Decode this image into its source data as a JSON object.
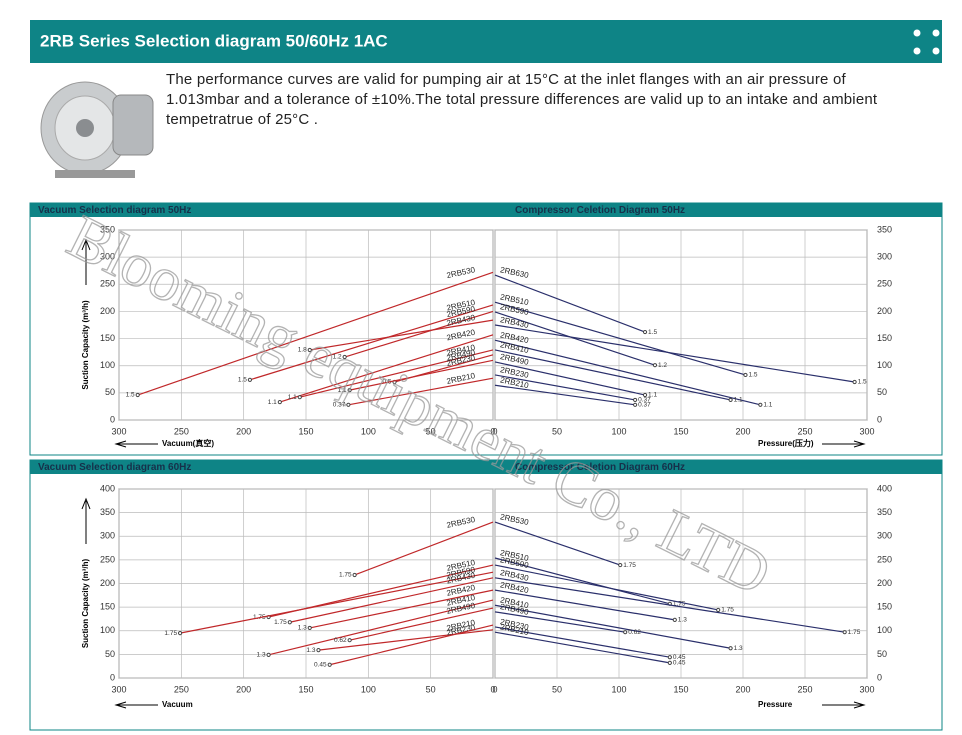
{
  "header": {
    "title": "2RB Series Selection diagram 50/60Hz 1AC"
  },
  "description": "The performance curves are valid for pumping air at 15°C at the inlet flanges with an air pressure of 1.013mbar and a tolerance of ±10%.The total pressure differences are valid up to an intake and ambient tempetratrue of 25°C .",
  "watermark": "Blooming equipment Co., LTD",
  "sections": [
    {
      "charts": [
        {
          "type": "line",
          "title": "Vacuum Selection diagram 50Hz",
          "y_label": "Suction Capacity (m³/h)",
          "x_label": "Vacuum(真空)",
          "color": "#c0282a",
          "xlim": [
            300,
            0
          ],
          "xticks": [
            300,
            250,
            200,
            150,
            100,
            50,
            0
          ],
          "ylim": [
            0,
            350
          ],
          "yticks": [
            0,
            50,
            100,
            150,
            200,
            250,
            300,
            350
          ],
          "y_axis": "left",
          "series": [
            {
              "name": "2RB530",
              "x": [
                285,
                0
              ],
              "values": [
                46,
                272
              ],
              "end_label": 1.5
            },
            {
              "name": "2RB510",
              "x": [
                195,
                0
              ],
              "values": [
                74,
                212
              ],
              "end_label": 1.5
            },
            {
              "name": "2RB590",
              "x": [
                119,
                0
              ],
              "values": [
                116,
                200
              ],
              "end_label": 1.2
            },
            {
              "name": "2RB430",
              "x": [
                147,
                0
              ],
              "values": [
                129,
                184
              ],
              "end_label": 1.8
            },
            {
              "name": "2RB420",
              "x": [
                171,
                0
              ],
              "values": [
                33,
                157
              ],
              "end_label": 1.1
            },
            {
              "name": "2RB410",
              "x": [
                155,
                0
              ],
              "values": [
                42,
                129
              ],
              "end_label": 1.1
            },
            {
              "name": "2RB490",
              "x": [
                79,
                0
              ],
              "values": [
                70,
                120
              ],
              "end_label": 0.5
            },
            {
              "name": "2RB230",
              "x": [
                115,
                0
              ],
              "values": [
                55,
                110
              ],
              "end_label": 1.1
            },
            {
              "name": "2RB210",
              "x": [
                116,
                0
              ],
              "values": [
                28,
                77
              ],
              "end_label": 0.37
            }
          ]
        },
        {
          "type": "line",
          "title": "Compressor Celetion Diagram 50Hz",
          "x_label": "Pressure(压力)",
          "color": "#2a2f6b",
          "xlim": [
            0,
            300
          ],
          "xticks": [
            0,
            50,
            100,
            150,
            200,
            250,
            300
          ],
          "ylim": [
            0,
            350
          ],
          "yticks": [
            0,
            50,
            100,
            150,
            200,
            250,
            300,
            350
          ],
          "y_axis": "right",
          "series": [
            {
              "name": "2RB630",
              "x": [
                0,
                121
              ],
              "values": [
                267,
                162
              ],
              "end_label": 1.5
            },
            {
              "name": "2RB510",
              "x": [
                0,
                202
              ],
              "values": [
                217,
                83
              ],
              "end_label": 1.5
            },
            {
              "name": "2RB590",
              "x": [
                0,
                129
              ],
              "values": [
                199,
                101
              ],
              "end_label": 1.2
            },
            {
              "name": "2RB430",
              "x": [
                0,
                290
              ],
              "values": [
                175,
                70
              ],
              "end_label": 1.5
            },
            {
              "name": "2RB420",
              "x": [
                0,
                214
              ],
              "values": [
                147,
                28
              ],
              "end_label": 1.1
            },
            {
              "name": "2RB410",
              "x": [
                0,
                190
              ],
              "values": [
                129,
                37
              ],
              "end_label": 1.1
            },
            {
              "name": "2RB490",
              "x": [
                0,
                121
              ],
              "values": [
                107,
                46
              ],
              "end_label": 1.1
            },
            {
              "name": "2RB230",
              "x": [
                0,
                113
              ],
              "values": [
                83,
                37
              ],
              "end_label": 0.37
            },
            {
              "name": "2RB210",
              "x": [
                0,
                113
              ],
              "values": [
                64,
                28
              ],
              "end_label": 0.37
            }
          ]
        }
      ]
    },
    {
      "charts": [
        {
          "type": "line",
          "title": "Vacuum Selection diagram 60Hz",
          "y_label": "Suction Capacity (m³/h)",
          "x_label": "Vacuum",
          "color": "#c0282a",
          "xlim": [
            300,
            0
          ],
          "xticks": [
            300,
            250,
            200,
            150,
            100,
            50,
            0
          ],
          "ylim": [
            0,
            400
          ],
          "yticks": [
            0,
            50,
            100,
            150,
            200,
            250,
            300,
            350,
            400
          ],
          "y_axis": "left",
          "series": [
            {
              "name": "2RB530",
              "x": [
                111,
                0
              ],
              "values": [
                218,
                330
              ],
              "end_label": 1.75
            },
            {
              "name": "2RB510",
              "x": [
                180,
                0
              ],
              "values": [
                129,
                239
              ],
              "end_label": 1.75
            },
            {
              "name": "2RB590",
              "x": [
                251,
                0
              ],
              "values": [
                95,
                224
              ],
              "end_label": 1.75
            },
            {
              "name": "2RB430",
              "x": [
                163,
                0
              ],
              "values": [
                118,
                212
              ],
              "end_label": 1.75
            },
            {
              "name": "2RB420",
              "x": [
                147,
                0
              ],
              "values": [
                106,
                186
              ],
              "end_label": 1.3
            },
            {
              "name": "2RB410",
              "x": [
                180,
                0
              ],
              "values": [
                49,
                165
              ],
              "end_label": 1.3
            },
            {
              "name": "2RB490",
              "x": [
                115,
                0
              ],
              "values": [
                80,
                148
              ],
              "end_label": 0.62
            },
            {
              "name": "2RB230",
              "x": [
                140,
                0
              ],
              "values": [
                59,
                102
              ],
              "end_label": 1.3
            },
            {
              "name": "2RB210",
              "x": [
                131,
                0
              ],
              "values": [
                28,
                112
              ],
              "end_label": 0.45
            }
          ]
        },
        {
          "type": "line",
          "title": "Compressor Celetion Diagram 60Hz",
          "x_label": "Pressure",
          "color": "#2a2f6b",
          "xlim": [
            0,
            300
          ],
          "xticks": [
            0,
            50,
            100,
            150,
            200,
            250,
            300
          ],
          "ylim": [
            0,
            400
          ],
          "yticks": [
            0,
            50,
            100,
            150,
            200,
            250,
            300,
            350,
            400
          ],
          "y_axis": "right",
          "series": [
            {
              "name": "2RB530",
              "x": [
                0,
                101
              ],
              "values": [
                330,
                239
              ],
              "end_label": 1.75
            },
            {
              "name": "2RB510",
              "x": [
                0,
                141
              ],
              "values": [
                254,
                157
              ],
              "end_label": 1.75
            },
            {
              "name": "2RB590",
              "x": [
                0,
                180
              ],
              "values": [
                239,
                144
              ],
              "end_label": 1.75
            },
            {
              "name": "2RB430",
              "x": [
                0,
                282
              ],
              "values": [
                212,
                97
              ],
              "end_label": 1.75
            },
            {
              "name": "2RB420",
              "x": [
                0,
                145
              ],
              "values": [
                186,
                123
              ],
              "end_label": 1.3
            },
            {
              "name": "2RB410",
              "x": [
                0,
                190
              ],
              "values": [
                154,
                63
              ],
              "end_label": 1.3
            },
            {
              "name": "2RB490",
              "x": [
                0,
                105
              ],
              "values": [
                140,
                97
              ],
              "end_label": 0.62
            },
            {
              "name": "2RB230",
              "x": [
                0,
                141
              ],
              "values": [
                108,
                44
              ],
              "end_label": 0.45
            },
            {
              "name": "2RB210",
              "x": [
                0,
                141
              ],
              "values": [
                97,
                32
              ],
              "end_label": 0.45
            }
          ]
        }
      ]
    }
  ]
}
